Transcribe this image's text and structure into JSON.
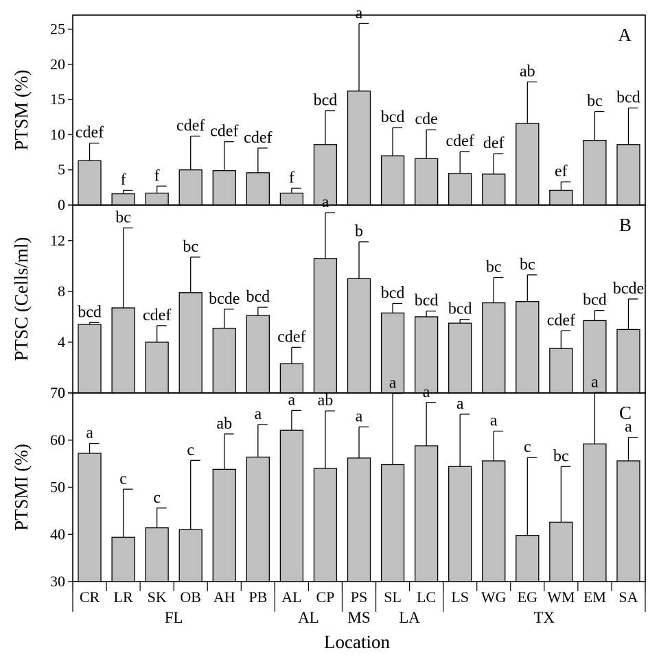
{
  "chart_data": {
    "type": "bar",
    "categories": [
      "CR",
      "LR",
      "SK",
      "OB",
      "AH",
      "PB",
      "AL",
      "CP",
      "PS",
      "SL",
      "LC",
      "LS",
      "WG",
      "EG",
      "WM",
      "EM",
      "SA"
    ],
    "groups": [
      {
        "label": "FL",
        "categories": [
          "CR",
          "LR",
          "SK",
          "OB",
          "AH",
          "PB"
        ]
      },
      {
        "label": "AL",
        "categories": [
          "AL",
          "CP"
        ]
      },
      {
        "label": "MS",
        "categories": [
          "PS"
        ]
      },
      {
        "label": "LA",
        "categories": [
          "SL",
          "LC"
        ]
      },
      {
        "label": "TX",
        "categories": [
          "LS",
          "WG",
          "EG",
          "WM",
          "EM",
          "SA"
        ]
      }
    ],
    "xlabel": "Location",
    "bar_color": "#c0c0c0",
    "panels": [
      {
        "panel": "A",
        "ylabel": "PTSM (%)",
        "ylim": [
          0,
          27
        ],
        "yticks": [
          0,
          5,
          10,
          15,
          20,
          25
        ],
        "values": [
          6.3,
          1.6,
          1.7,
          5.0,
          4.9,
          4.6,
          1.7,
          8.6,
          16.2,
          7.0,
          6.6,
          4.5,
          4.4,
          11.6,
          2.1,
          9.2,
          8.6
        ],
        "errors": [
          2.5,
          0.5,
          1.0,
          4.8,
          4.1,
          3.5,
          0.7,
          4.8,
          9.6,
          4.0,
          4.1,
          3.1,
          2.9,
          5.9,
          1.2,
          4.1,
          5.2
        ],
        "letters": [
          "cdef",
          "f",
          "f",
          "cdef",
          "cdef",
          "cdef",
          "f",
          "bcd",
          "a",
          "bcd",
          "cde",
          "cdef",
          "def",
          "ab",
          "ef",
          "bc",
          "bcd"
        ]
      },
      {
        "panel": "B",
        "ylabel": "PTSC (Cells/ml)",
        "ylim": [
          0,
          14.8
        ],
        "yticks": [
          0,
          4,
          8,
          12
        ],
        "values": [
          5.4,
          6.7,
          4.0,
          7.9,
          5.1,
          6.1,
          2.3,
          10.6,
          9.0,
          6.3,
          6.0,
          5.5,
          7.1,
          7.2,
          3.5,
          5.7,
          5.0
        ],
        "errors": [
          0.15,
          6.3,
          1.3,
          2.8,
          1.5,
          0.65,
          1.3,
          3.6,
          2.9,
          0.75,
          0.45,
          0.3,
          2.0,
          2.1,
          1.4,
          0.8,
          2.4
        ],
        "letters": [
          "bcd",
          "bc",
          "cdef",
          "bc",
          "bcde",
          "bcd",
          "cdef",
          "a",
          "b",
          "bcd",
          "bcd",
          "bcd",
          "bc",
          "bc",
          "cdef",
          "bcd",
          "bcde"
        ]
      },
      {
        "panel": "C",
        "ylabel": "PTSMI (%)",
        "ylim": [
          30,
          70
        ],
        "yticks": [
          30,
          40,
          50,
          60,
          70
        ],
        "values": [
          57.2,
          39.4,
          41.4,
          41.0,
          53.8,
          56.4,
          62.1,
          54.0,
          56.2,
          54.8,
          58.8,
          54.4,
          55.6,
          39.8,
          42.6,
          59.2,
          55.6
        ],
        "errors": [
          2.1,
          10.2,
          4.2,
          14.7,
          7.5,
          6.9,
          4.2,
          12.2,
          6.6,
          15.1,
          9.2,
          11.1,
          6.3,
          16.5,
          11.8,
          10.9,
          5.0
        ],
        "letters": [
          "a",
          "c",
          "c",
          "c",
          "ab",
          "a",
          "a",
          "ab",
          "a",
          "a",
          "a",
          "a",
          "a",
          "c",
          "bc",
          "a",
          "a"
        ]
      }
    ]
  }
}
